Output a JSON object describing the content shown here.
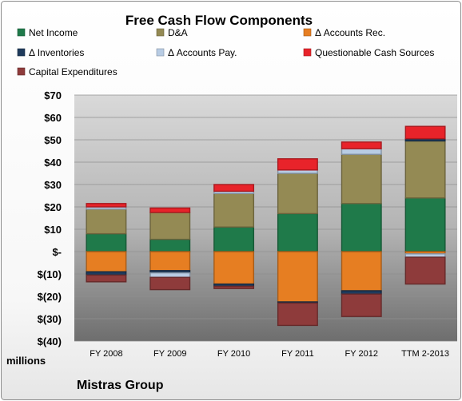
{
  "chart_data": {
    "type": "bar",
    "stacked": true,
    "title": "Free Cash Flow Components",
    "ylabel": "millions",
    "company": "Mistras Group",
    "ylim": [
      -40,
      70
    ],
    "ytick_values": [
      70,
      60,
      50,
      40,
      30,
      20,
      10,
      0,
      -10,
      -20,
      -30,
      -40
    ],
    "ytick_labels": [
      "$70",
      "$60",
      "$50",
      "$40",
      "$30",
      "$20",
      "$10",
      "$-",
      "$(10)",
      "$(20)",
      "$(30)",
      "$(40)"
    ],
    "grid": true,
    "legend_position": "top",
    "categories": [
      "FY 2008",
      "FY 2009",
      "FY 2010",
      "FY 2011",
      "FY 2012",
      "TTM 2-2013"
    ],
    "series": [
      {
        "name": "Net Income",
        "color": "#1f7a4a",
        "values": [
          8,
          5.5,
          11,
          17,
          21.5,
          24
        ]
      },
      {
        "name": "D&A",
        "color": "#948a54",
        "values": [
          11,
          12,
          15,
          18,
          22,
          25.5
        ]
      },
      {
        "name": "Δ Accounts Rec.",
        "color": "#e67e22",
        "values": [
          -9,
          -8.5,
          -14.5,
          -22.5,
          -17.5,
          -1
        ]
      },
      {
        "name": "Δ Inventories",
        "color": "#1f3b5c",
        "values": [
          -1.5,
          -1,
          -1,
          -0.5,
          -1.5,
          1
        ]
      },
      {
        "name": "Δ Accounts Pay.",
        "color": "#b8cce4",
        "values": [
          1,
          -2,
          1,
          1.5,
          2.5,
          -1.5
        ]
      },
      {
        "name": "Questionable Cash Sources",
        "color": "#e8232a",
        "values": [
          1.5,
          2,
          3,
          5,
          3,
          5.5
        ]
      },
      {
        "name": "Capital Expenditures",
        "color": "#8e3b3b",
        "values": [
          -3,
          -5.5,
          -1,
          -10,
          -10,
          -12
        ]
      }
    ]
  }
}
